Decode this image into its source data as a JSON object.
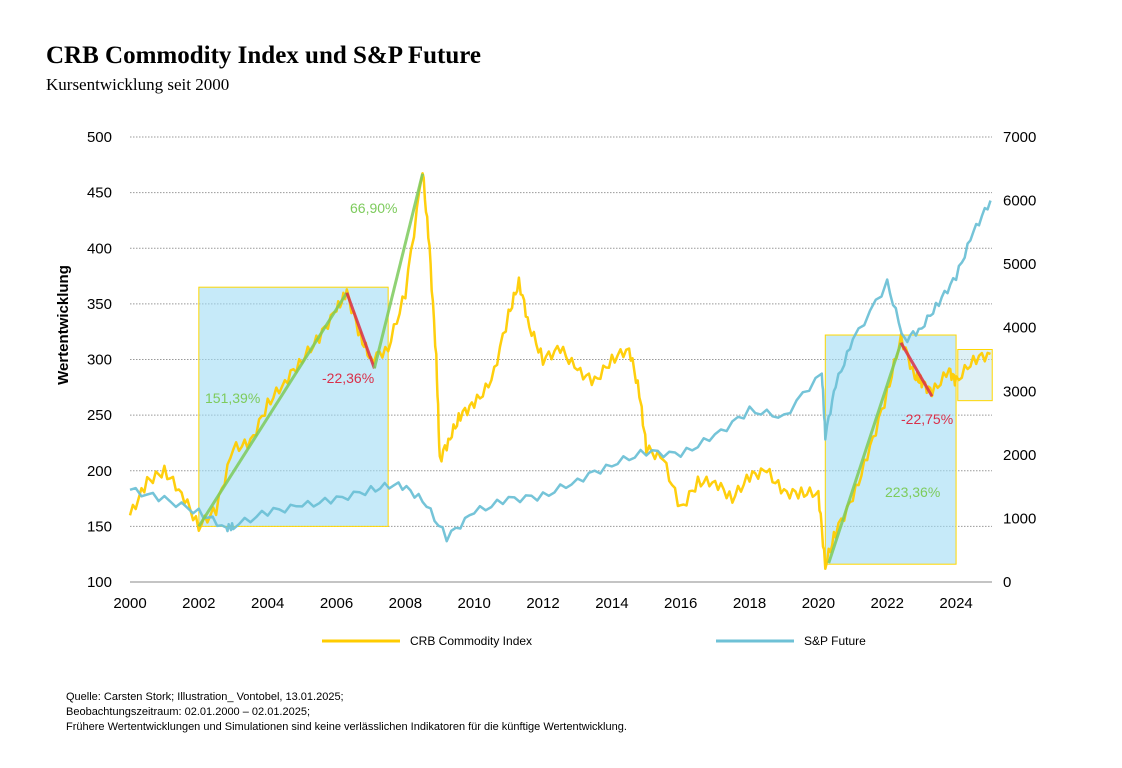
{
  "chart_data": {
    "type": "line",
    "title": "CRB Commodity Index und S&P Future",
    "subtitle": "Kursentwicklung seit 2000",
    "ylabel": "Wertentwicklung",
    "xlim": [
      2000,
      2025
    ],
    "ylim": [
      100,
      500
    ],
    "y2lim": [
      0,
      7000
    ],
    "x_ticks": [
      "2000",
      "2002",
      "2004",
      "2006",
      "2008",
      "2010",
      "2012",
      "2014",
      "2016",
      "2018",
      "2020",
      "2022",
      "2024"
    ],
    "y_ticks": [
      "100",
      "150",
      "200",
      "250",
      "300",
      "350",
      "400",
      "450",
      "500"
    ],
    "y2_ticks": [
      "0",
      "1000",
      "2000",
      "3000",
      "4000",
      "5000",
      "6000",
      "7000"
    ],
    "grid": true,
    "legend_position": "bottom",
    "series": [
      {
        "name": "CRB Commodity Index",
        "axis": "left",
        "color": "#FFCC00",
        "x": [
          2000,
          2000.5,
          2001,
          2001.5,
          2002,
          2002.5,
          2003,
          2003.5,
          2004,
          2004.5,
          2005,
          2005.5,
          2006,
          2006.3,
          2006.7,
          2007,
          2007.5,
          2008,
          2008.5,
          2008.7,
          2008.9,
          2009,
          2009.3,
          2009.6,
          2010,
          2010.5,
          2011,
          2011.3,
          2011.6,
          2012,
          2012.5,
          2013,
          2013.5,
          2014,
          2014.5,
          2014.8,
          2015,
          2015.5,
          2016,
          2016.5,
          2017,
          2017.5,
          2018,
          2018.5,
          2019,
          2019.5,
          2020,
          2020.2,
          2020.5,
          2021,
          2021.5,
          2022,
          2022.4,
          2022.8,
          2023,
          2023.3,
          2023.8,
          2024,
          2024.5,
          2025
        ],
        "y": [
          160,
          190,
          200,
          180,
          150,
          165,
          220,
          225,
          260,
          280,
          300,
          320,
          345,
          360,
          320,
          300,
          310,
          360,
          470,
          400,
          300,
          210,
          230,
          250,
          260,
          280,
          340,
          370,
          330,
          300,
          310,
          290,
          280,
          300,
          310,
          270,
          220,
          210,
          165,
          190,
          190,
          175,
          195,
          200,
          180,
          180,
          180,
          115,
          145,
          175,
          220,
          270,
          320,
          285,
          280,
          270,
          290,
          280,
          300,
          305
        ]
      },
      {
        "name": "S&P Future",
        "axis": "right",
        "color": "#6EC1D6",
        "x": [
          2000,
          2001,
          2002,
          2002.8,
          2003,
          2004,
          2005,
          2006,
          2007,
          2007.8,
          2008.5,
          2009.2,
          2010,
          2011,
          2012,
          2013,
          2014,
          2015,
          2016,
          2017,
          2018,
          2019,
          2020.1,
          2020.2,
          2020.5,
          2021,
          2022,
          2022.5,
          2023,
          2023.5,
          2024,
          2024.5,
          2025
        ],
        "y": [
          1450,
          1300,
          1100,
          850,
          880,
          1100,
          1200,
          1300,
          1450,
          1550,
          1300,
          700,
          1100,
          1300,
          1350,
          1600,
          1850,
          2050,
          2000,
          2300,
          2700,
          2600,
          3300,
          2300,
          3100,
          3800,
          4700,
          3800,
          4000,
          4400,
          4800,
          5500,
          6000
        ]
      }
    ],
    "annotations": [
      {
        "text": "151,39%",
        "color": "#7DCB5C",
        "from": [
          2002,
          150
        ],
        "to": [
          2006.3,
          360
        ]
      },
      {
        "text": "-22,36%",
        "color": "#D9304A",
        "from": [
          2006.3,
          360
        ],
        "to": [
          2007.1,
          292
        ]
      },
      {
        "text": "66,90%",
        "color": "#7DCB5C",
        "from": [
          2007.1,
          292
        ],
        "to": [
          2008.5,
          467
        ]
      },
      {
        "text": "223,36%",
        "color": "#7DCB5C",
        "from": [
          2020.3,
          117
        ],
        "to": [
          2022.4,
          315
        ]
      },
      {
        "text": "-22,75%",
        "color": "#D9304A",
        "from": [
          2022.4,
          315
        ],
        "to": [
          2023.3,
          267
        ]
      }
    ],
    "highlight_boxes": [
      {
        "x": [
          2002,
          2007.5
        ],
        "y": [
          150,
          365
        ]
      },
      {
        "x": [
          2020.2,
          2024
        ],
        "y": [
          116,
          322
        ]
      },
      {
        "x": [
          2024.05,
          2025.05
        ],
        "y": [
          263,
          309
        ]
      }
    ]
  },
  "footer": {
    "line1": "Quelle: Carsten Stork; Illustration_ Vontobel, 13.01.2025;",
    "line2": "Beobachtungszeitraum: 02.01.2000 – 02.01.2025;",
    "line3": "Frühere Wertentwicklungen und Simulationen sind keine verlässlichen Indikatoren für die künftige Wertentwicklung."
  }
}
